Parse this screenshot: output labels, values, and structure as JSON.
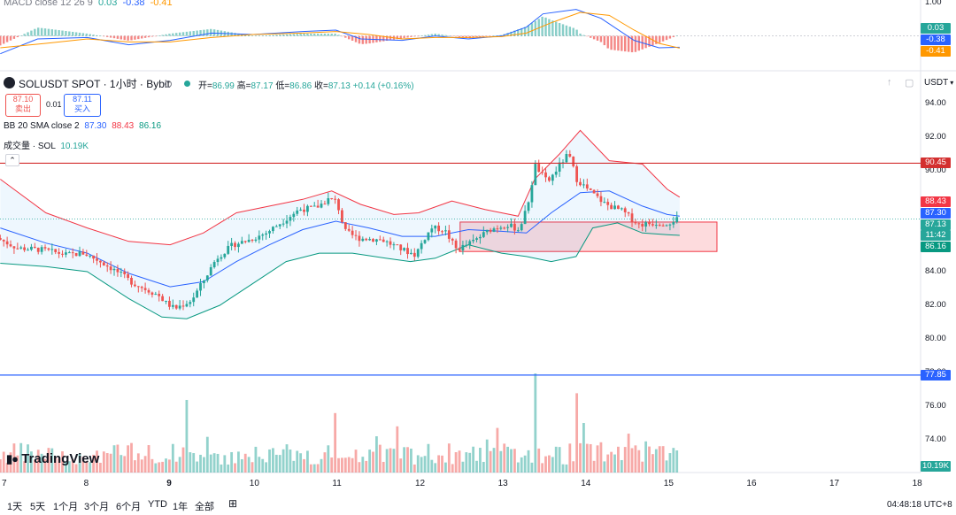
{
  "macd": {
    "label": "MACD close 12 26 9",
    "hist": "0.03",
    "macd": "-0.38",
    "signal": "-0.41",
    "axis_top": "1.00",
    "colors": {
      "macd": "#2962ff",
      "signal": "#ff9800",
      "hist_pos": "#26a69a",
      "hist_neg": "#ef5350"
    }
  },
  "header": {
    "symbol": "SOLUSDT SPOT · 1小时 · Bybit",
    "ohlc": {
      "o_label": "开=",
      "o": "86.99",
      "h_label": "高=",
      "h": "87.17",
      "l_label": "低=",
      "l": "86.86",
      "c_label": "收=",
      "c": "87.13"
    },
    "change": "+0.14 (+0.16%)",
    "currency": "USDT"
  },
  "trade": {
    "sell_price": "87.10",
    "sell_label": "卖出",
    "spread": "0.01",
    "buy_price": "87.11",
    "buy_label": "买入"
  },
  "bb": {
    "label": "BB 20 SMA close 2",
    "basis": "87.30",
    "upper": "88.43",
    "lower": "86.16"
  },
  "volume": {
    "label": "成交量 · SOL",
    "value": "10.19K"
  },
  "price_tags": {
    "red_line": "90.45",
    "bb_upper": "88.43",
    "bb_basis": "87.30",
    "last": "87.13",
    "countdown": "11:42",
    "bb_lower": "86.16",
    "blue_line": "77.85",
    "volume": "10.19K"
  },
  "y_ticks": [
    "94.00",
    "92.00",
    "90.00",
    "88.00",
    "86.00",
    "84.00",
    "82.00",
    "80.00",
    "78.00",
    "76.00",
    "74.00"
  ],
  "x_ticks": [
    "7",
    "8",
    "9",
    "10",
    "11",
    "12",
    "13",
    "14",
    "15",
    "16",
    "17",
    "18"
  ],
  "ranges": [
    "1天",
    "5天",
    "1个月",
    "3个月",
    "6个月",
    "YTD",
    "1年",
    "全部"
  ],
  "time": "04:48:18 UTC+8",
  "brand": "TradingView",
  "chart_data": {
    "type": "candlestick",
    "title": "SOLUSDT SPOT · 1小时 · Bybit",
    "ylim": [
      72.8,
      95.0
    ],
    "x_range_days": [
      7,
      18
    ],
    "horizontal_lines": [
      {
        "value": 90.45,
        "color": "#d32f2f"
      },
      {
        "value": 77.85,
        "color": "#2962ff"
      }
    ],
    "rectangle": {
      "x_start_day": 12.5,
      "x_end_day": 15.6,
      "y_low": 85.2,
      "y_high": 86.95
    },
    "price_path": [
      [
        6.95,
        86.0
      ],
      [
        7.2,
        85.4
      ],
      [
        7.5,
        85.3
      ],
      [
        7.8,
        85.0
      ],
      [
        8.0,
        85.1
      ],
      [
        8.2,
        84.6
      ],
      [
        8.4,
        84.0
      ],
      [
        8.6,
        83.3
      ],
      [
        8.9,
        82.6
      ],
      [
        9.0,
        82.1
      ],
      [
        9.1,
        81.8
      ],
      [
        9.3,
        82.3
      ],
      [
        9.45,
        83.5
      ],
      [
        9.6,
        84.8
      ],
      [
        9.8,
        85.6
      ],
      [
        10.0,
        85.9
      ],
      [
        10.2,
        86.3
      ],
      [
        10.4,
        87.0
      ],
      [
        10.6,
        87.7
      ],
      [
        10.8,
        87.8
      ],
      [
        10.95,
        88.3
      ],
      [
        11.05,
        88.2
      ],
      [
        11.15,
        86.4
      ],
      [
        11.3,
        86.0
      ],
      [
        11.6,
        85.9
      ],
      [
        11.8,
        85.4
      ],
      [
        12.0,
        85.0
      ],
      [
        12.1,
        85.9
      ],
      [
        12.2,
        86.6
      ],
      [
        12.35,
        86.5
      ],
      [
        12.5,
        85.3
      ],
      [
        12.7,
        85.8
      ],
      [
        12.9,
        86.5
      ],
      [
        13.1,
        86.8
      ],
      [
        13.25,
        86.5
      ],
      [
        13.35,
        87.8
      ],
      [
        13.45,
        90.3
      ],
      [
        13.6,
        89.3
      ],
      [
        13.75,
        90.4
      ],
      [
        13.85,
        91.0
      ],
      [
        13.95,
        89.5
      ],
      [
        14.1,
        88.8
      ],
      [
        14.3,
        88.0
      ],
      [
        14.5,
        87.6
      ],
      [
        14.7,
        86.8
      ],
      [
        14.9,
        86.9
      ],
      [
        15.05,
        86.9
      ],
      [
        15.15,
        87.13
      ]
    ],
    "bb_upper_path": [
      [
        6.95,
        89.5
      ],
      [
        7.5,
        87.5
      ],
      [
        8.0,
        86.6
      ],
      [
        8.5,
        85.8
      ],
      [
        9.0,
        85.6
      ],
      [
        9.4,
        86.3
      ],
      [
        9.8,
        87.5
      ],
      [
        10.2,
        87.9
      ],
      [
        10.6,
        88.3
      ],
      [
        10.95,
        88.8
      ],
      [
        11.3,
        88.0
      ],
      [
        11.7,
        87.4
      ],
      [
        12.0,
        87.5
      ],
      [
        12.4,
        88.2
      ],
      [
        12.8,
        87.7
      ],
      [
        13.2,
        87.3
      ],
      [
        13.4,
        89.5
      ],
      [
        13.7,
        91.0
      ],
      [
        13.95,
        92.4
      ],
      [
        14.3,
        90.6
      ],
      [
        14.7,
        90.4
      ],
      [
        15.0,
        88.9
      ],
      [
        15.15,
        88.43
      ]
    ],
    "bb_lower_path": [
      [
        6.95,
        84.5
      ],
      [
        7.5,
        84.3
      ],
      [
        8.0,
        84.0
      ],
      [
        8.5,
        82.4
      ],
      [
        8.9,
        81.3
      ],
      [
        9.2,
        81.2
      ],
      [
        9.6,
        82.0
      ],
      [
        10.0,
        83.3
      ],
      [
        10.4,
        84.6
      ],
      [
        10.8,
        85.1
      ],
      [
        11.2,
        85.1
      ],
      [
        11.6,
        84.8
      ],
      [
        11.9,
        84.6
      ],
      [
        12.2,
        84.8
      ],
      [
        12.6,
        85.6
      ],
      [
        13.0,
        85.1
      ],
      [
        13.3,
        84.9
      ],
      [
        13.6,
        84.6
      ],
      [
        13.9,
        84.9
      ],
      [
        14.1,
        86.6
      ],
      [
        14.4,
        86.9
      ],
      [
        14.7,
        86.3
      ],
      [
        15.0,
        86.2
      ],
      [
        15.15,
        86.16
      ]
    ],
    "bb_basis_path": [
      [
        6.95,
        86.6
      ],
      [
        7.5,
        85.7
      ],
      [
        8.0,
        85.1
      ],
      [
        8.5,
        83.9
      ],
      [
        9.0,
        83.1
      ],
      [
        9.4,
        83.4
      ],
      [
        9.8,
        84.6
      ],
      [
        10.2,
        85.6
      ],
      [
        10.6,
        86.5
      ],
      [
        11.0,
        87.0
      ],
      [
        11.4,
        86.6
      ],
      [
        11.8,
        86.1
      ],
      [
        12.2,
        86.1
      ],
      [
        12.6,
        86.5
      ],
      [
        13.0,
        86.4
      ],
      [
        13.3,
        86.3
      ],
      [
        13.6,
        87.5
      ],
      [
        13.95,
        88.7
      ],
      [
        14.3,
        88.8
      ],
      [
        14.7,
        87.9
      ],
      [
        15.0,
        87.4
      ],
      [
        15.15,
        87.3
      ]
    ],
    "macd_path": [
      [
        6.95,
        -0.6
      ],
      [
        7.4,
        -0.1
      ],
      [
        8.0,
        -0.05
      ],
      [
        8.5,
        -0.3
      ],
      [
        9.0,
        -0.15
      ],
      [
        9.5,
        0.1
      ],
      [
        10.0,
        0.05
      ],
      [
        10.6,
        0.15
      ],
      [
        11.0,
        0.2
      ],
      [
        11.3,
        -0.1
      ],
      [
        11.8,
        -0.15
      ],
      [
        12.2,
        0.0
      ],
      [
        12.6,
        -0.1
      ],
      [
        13.0,
        0.0
      ],
      [
        13.3,
        0.3
      ],
      [
        13.5,
        0.75
      ],
      [
        13.9,
        0.9
      ],
      [
        14.2,
        0.6
      ],
      [
        14.6,
        -0.15
      ],
      [
        14.9,
        -0.4
      ],
      [
        15.15,
        -0.38
      ]
    ],
    "signal_path": [
      [
        6.95,
        -0.4
      ],
      [
        7.5,
        -0.25
      ],
      [
        8.0,
        -0.1
      ],
      [
        8.5,
        -0.2
      ],
      [
        9.0,
        -0.2
      ],
      [
        9.5,
        -0.05
      ],
      [
        10.0,
        0.05
      ],
      [
        10.6,
        0.1
      ],
      [
        11.0,
        0.15
      ],
      [
        11.4,
        0.05
      ],
      [
        11.8,
        -0.1
      ],
      [
        12.2,
        -0.05
      ],
      [
        12.6,
        -0.05
      ],
      [
        13.0,
        -0.02
      ],
      [
        13.3,
        0.1
      ],
      [
        13.6,
        0.45
      ],
      [
        13.95,
        0.8
      ],
      [
        14.3,
        0.7
      ],
      [
        14.6,
        0.2
      ],
      [
        14.9,
        -0.25
      ],
      [
        15.15,
        -0.41
      ]
    ],
    "macd_ylim": [
      -1.0,
      1.1
    ],
    "volume_spikes": [
      [
        13.4,
        1.0
      ],
      [
        13.9,
        0.8
      ],
      [
        11.0,
        0.6
      ],
      [
        9.2,
        0.58
      ],
      [
        12.95,
        0.45
      ],
      [
        14.0,
        0.5
      ]
    ]
  }
}
